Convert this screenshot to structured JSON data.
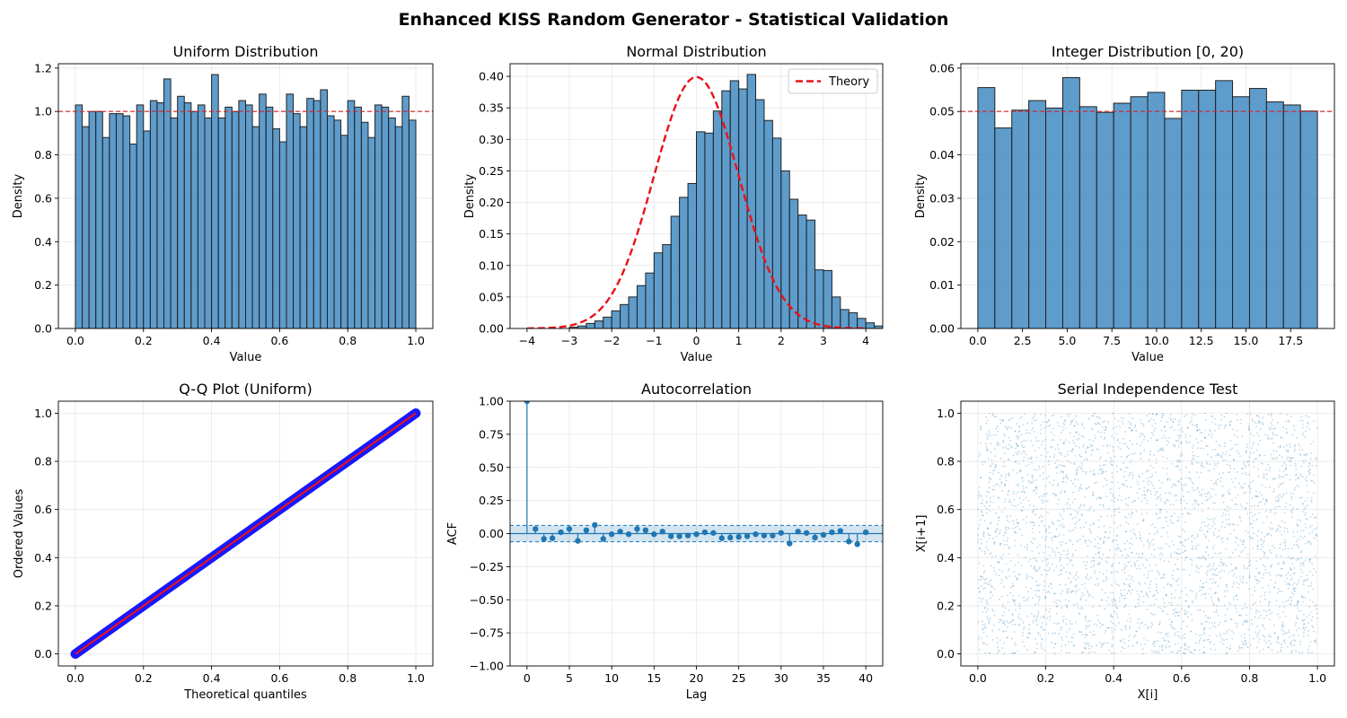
{
  "figure": {
    "title": "Enhanced KISS Random Generator - Statistical Validation"
  },
  "colors": {
    "bar": "#3b86c0",
    "bar_edge": "#222222",
    "ref_line": "#d62728",
    "theory": "#e8121a",
    "qq_points": "#1818ff",
    "qq_line": "#e8121a",
    "acf": "#1f77b4",
    "scatter": "#1f77b4"
  },
  "chart_data": [
    {
      "id": "uniform",
      "type": "bar",
      "title": "Uniform Distribution",
      "xlabel": "Value",
      "ylabel": "Density",
      "xlim": [
        -0.05,
        1.05
      ],
      "ylim": [
        0,
        1.22
      ],
      "xticks": [
        0.0,
        0.2,
        0.4,
        0.6,
        0.8,
        1.0
      ],
      "xtick_labels": [
        "0.0",
        "0.2",
        "0.4",
        "0.6",
        "0.8",
        "1.0"
      ],
      "yticks": [
        0.0,
        0.2,
        0.4,
        0.6,
        0.8,
        1.0,
        1.2
      ],
      "ytick_labels": [
        "0.0",
        "0.2",
        "0.4",
        "0.6",
        "0.8",
        "1.0",
        "1.2"
      ],
      "bin_start": 0.0,
      "bin_width": 0.02,
      "values": [
        1.03,
        0.93,
        1.0,
        1.0,
        0.88,
        0.99,
        0.99,
        0.98,
        0.85,
        1.03,
        0.91,
        1.05,
        1.04,
        1.15,
        0.97,
        1.07,
        1.04,
        1.0,
        1.03,
        0.97,
        1.17,
        0.97,
        1.02,
        1.0,
        1.05,
        1.03,
        0.93,
        1.08,
        1.02,
        0.92,
        0.86,
        1.08,
        0.99,
        0.93,
        1.06,
        1.05,
        1.1,
        0.98,
        0.96,
        0.89,
        1.05,
        1.02,
        0.95,
        0.88,
        1.03,
        1.02,
        0.97,
        0.93,
        1.07,
        0.96
      ],
      "hline": 1.0
    },
    {
      "id": "normal",
      "type": "bar",
      "title": "Normal Distribution",
      "xlabel": "Value",
      "ylabel": "Density",
      "xlim": [
        -4.4,
        4.4
      ],
      "ylim": [
        0,
        0.42
      ],
      "xticks": [
        -4,
        -3,
        -2,
        -1,
        0,
        1,
        2,
        3,
        4
      ],
      "xtick_labels": [
        "−4",
        "−3",
        "−2",
        "−1",
        "0",
        "1",
        "2",
        "3",
        "4"
      ],
      "yticks": [
        0.0,
        0.05,
        0.1,
        0.15,
        0.2,
        0.25,
        0.3,
        0.35,
        0.4
      ],
      "ytick_labels": [
        "0.00",
        "0.05",
        "0.10",
        "0.15",
        "0.20",
        "0.25",
        "0.30",
        "0.35",
        "0.40"
      ],
      "bin_start": -3.0,
      "bin_width": 0.2,
      "values": [
        0.002,
        0.004,
        0.008,
        0.012,
        0.018,
        0.028,
        0.038,
        0.05,
        0.068,
        0.088,
        0.12,
        0.133,
        0.178,
        0.208,
        0.23,
        0.312,
        0.31,
        0.345,
        0.377,
        0.393,
        0.38,
        0.403,
        0.363,
        0.33,
        0.302,
        0.25,
        0.205,
        0.18,
        0.172,
        0.093,
        0.092,
        0.05,
        0.03,
        0.025,
        0.016,
        0.009,
        0.004,
        0.002
      ],
      "theory_curve": true,
      "legend": {
        "entries": [
          "Theory"
        ],
        "location": "upper right"
      }
    },
    {
      "id": "integer",
      "type": "bar",
      "title": "Integer Distribution [0, 20)",
      "xlabel": "Value",
      "ylabel": "Density",
      "xlim": [
        -0.95,
        19.95
      ],
      "ylim": [
        0,
        0.061
      ],
      "xticks": [
        0,
        2.5,
        5,
        7.5,
        10,
        12.5,
        15,
        17.5
      ],
      "xtick_labels": [
        "0.0",
        "2.5",
        "5.0",
        "7.5",
        "10.0",
        "12.5",
        "15.0",
        "17.5"
      ],
      "yticks": [
        0,
        0.01,
        0.02,
        0.03,
        0.04,
        0.05,
        0.06
      ],
      "ytick_labels": [
        "0.00",
        "0.01",
        "0.02",
        "0.03",
        "0.04",
        "0.05",
        "0.06"
      ],
      "bin_start": 0.0,
      "bin_width": 0.95,
      "values": [
        0.0555,
        0.0462,
        0.0503,
        0.0525,
        0.0508,
        0.0578,
        0.0511,
        0.0498,
        0.0519,
        0.0534,
        0.0544,
        0.0484,
        0.0549,
        0.0549,
        0.0571,
        0.0534,
        0.0553,
        0.0522,
        0.0515,
        0.0501
      ],
      "hline": 0.05
    },
    {
      "id": "qq",
      "type": "scatter",
      "title": "Q-Q Plot (Uniform)",
      "xlabel": "Theoretical quantiles",
      "ylabel": "Ordered Values",
      "xlim": [
        -0.05,
        1.05
      ],
      "ylim": [
        -0.05,
        1.05
      ],
      "xticks": [
        0.0,
        0.2,
        0.4,
        0.6,
        0.8,
        1.0
      ],
      "xtick_labels": [
        "0.0",
        "0.2",
        "0.4",
        "0.6",
        "0.8",
        "1.0"
      ],
      "yticks": [
        0.0,
        0.2,
        0.4,
        0.6,
        0.8,
        1.0
      ],
      "ytick_labels": [
        "0.0",
        "0.2",
        "0.4",
        "0.6",
        "0.8",
        "1.0"
      ],
      "points_from": [
        0,
        0
      ],
      "points_to": [
        1,
        1
      ]
    },
    {
      "id": "acf",
      "type": "scatter",
      "title": "Autocorrelation",
      "xlabel": "Lag",
      "ylabel": "ACF",
      "xlim": [
        -2,
        42
      ],
      "ylim": [
        -1,
        1
      ],
      "xticks": [
        0,
        5,
        10,
        15,
        20,
        25,
        30,
        35,
        40
      ],
      "xtick_labels": [
        "0",
        "5",
        "10",
        "15",
        "20",
        "25",
        "30",
        "35",
        "40"
      ],
      "yticks": [
        -1,
        -0.75,
        -0.5,
        -0.25,
        0,
        0.25,
        0.5,
        0.75,
        1
      ],
      "ytick_labels": [
        "−1.00",
        "−0.75",
        "−0.50",
        "−0.25",
        "0.00",
        "0.25",
        "0.50",
        "0.75",
        "1.00"
      ],
      "lags": [
        0,
        1,
        2,
        3,
        4,
        5,
        6,
        7,
        8,
        9,
        10,
        11,
        12,
        13,
        14,
        15,
        16,
        17,
        18,
        19,
        20,
        21,
        22,
        23,
        24,
        25,
        26,
        27,
        28,
        29,
        30,
        31,
        32,
        33,
        34,
        35,
        36,
        37,
        38,
        39,
        40
      ],
      "values": [
        1.0,
        0.035,
        -0.04,
        -0.035,
        0.01,
        0.035,
        -0.055,
        0.025,
        0.065,
        -0.04,
        -0.005,
        0.015,
        -0.005,
        0.035,
        0.025,
        -0.005,
        0.015,
        -0.02,
        -0.02,
        -0.015,
        -0.005,
        0.01,
        0.005,
        -0.035,
        -0.03,
        -0.025,
        -0.02,
        -0.005,
        -0.015,
        -0.015,
        0.005,
        -0.075,
        0.015,
        0.005,
        -0.03,
        -0.01,
        0.01,
        0.02,
        -0.06,
        -0.08,
        0.01
      ],
      "confidence_band": [
        -0.062,
        0.062
      ]
    },
    {
      "id": "serial",
      "type": "scatter",
      "title": "Serial Independence Test",
      "xlabel": "X[i]",
      "ylabel": "X[i+1]",
      "xlim": [
        -0.05,
        1.05
      ],
      "ylim": [
        -0.05,
        1.05
      ],
      "xticks": [
        0.0,
        0.2,
        0.4,
        0.6,
        0.8,
        1.0
      ],
      "xtick_labels": [
        "0.0",
        "0.2",
        "0.4",
        "0.6",
        "0.8",
        "1.0"
      ],
      "yticks": [
        0.0,
        0.2,
        0.4,
        0.6,
        0.8,
        1.0
      ],
      "ytick_labels": [
        "0.0",
        "0.2",
        "0.4",
        "0.6",
        "0.8",
        "1.0"
      ],
      "point_range": [
        0,
        1
      ]
    }
  ]
}
